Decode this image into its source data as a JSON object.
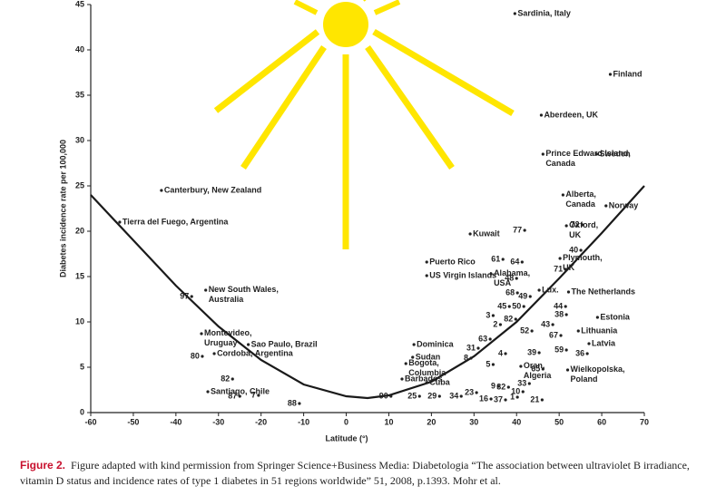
{
  "chart_data": {
    "type": "scatter",
    "x_label": "Latitude (°)",
    "y_label": "Diabetes incidence rate per 100,000",
    "xlim": [
      -60,
      70
    ],
    "xticks": [
      -60,
      -50,
      -40,
      -30,
      -20,
      -10,
      0,
      10,
      20,
      30,
      40,
      50,
      60,
      70
    ],
    "ylim": [
      0,
      45
    ],
    "yticks": [
      0,
      5,
      10,
      15,
      20,
      25,
      30,
      35,
      40,
      45
    ],
    "color": "#222222",
    "curve_color": "#1a1a1a",
    "labels": [
      "Sardinia, Italy",
      "Finland",
      "Aberdeen, UK",
      "Prince Edward Island,\nCanada",
      "Sweden",
      "Canterbury, New Zealand",
      "Tierra del Fuego, Argentina",
      "Alberta,\nCanada",
      "Norway",
      "Kuwait",
      "Oxford,\nUK",
      "Puerto Rico",
      "US Virgin Islands",
      "Plymouth,\nUK",
      "Alabama,\nUSA",
      "New South Wales,\nAustralia",
      "Lux.",
      "The Netherlands",
      "Estonia",
      "Montevideo,\nUruguay",
      "Lithuania",
      "Sao Paulo, Brazil",
      "Dominica",
      "Latvia",
      "Cordoba, Argentina",
      "Bogota,\nColumbia",
      "Sudan",
      "Wielkopolska,\nPoland",
      "Oran,\nAlgeria",
      "Barbados",
      "Cuba",
      "Santiago, Chile",
      "97",
      "80",
      "82",
      "87",
      "7",
      "88",
      "90",
      "25",
      "29",
      "34",
      "23",
      "16",
      "37",
      "1",
      "21",
      "10",
      "32",
      "33",
      "9",
      "3",
      "2",
      "45",
      "50",
      "68",
      "49",
      "48",
      "61",
      "64",
      "77",
      "72",
      "40",
      "71",
      "44",
      "38",
      "43",
      "52",
      "82",
      "67",
      "63",
      "31",
      "8",
      "5",
      "4",
      "39",
      "59",
      "36",
      "65"
    ],
    "x": [
      39.6,
      62,
      45.8,
      46.2,
      58.8,
      -43.4,
      -53.2,
      50.9,
      61,
      29.1,
      51.7,
      18.9,
      18.9,
      50.2,
      34,
      -33,
      45.3,
      52.2,
      59,
      -34,
      54.5,
      -23,
      15.9,
      57,
      -31,
      14,
      15.6,
      52,
      41,
      13.1,
      18.9,
      -32.5,
      -36.3,
      -33.8,
      -26.7,
      -25,
      -20.6,
      -11,
      10.5,
      17.2,
      21.9,
      27,
      30.6,
      34,
      37.4,
      40.2,
      46,
      41.5,
      38.1,
      43,
      35.7,
      34.5,
      36.2,
      38.3,
      41.7,
      40.2,
      43.2,
      40,
      36.8,
      41.3,
      41.9,
      55.4,
      55.1,
      51.5,
      51.5,
      51.7,
      48.5,
      43.6,
      39.8,
      50.4,
      33.8,
      31,
      29.3,
      34.5,
      37.4,
      45.3,
      51.7,
      56.6,
      46.2
    ],
    "values": [
      44,
      37.3,
      32.8,
      28.5,
      28.5,
      24.5,
      21,
      24,
      22.8,
      19.7,
      20.6,
      16.6,
      15.1,
      17,
      15.3,
      13.5,
      13.5,
      13.3,
      10.5,
      8.7,
      9,
      7.5,
      7.5,
      7.6,
      6.5,
      5.4,
      6.1,
      4.7,
      5.1,
      3.7,
      3.3,
      2.3,
      12.8,
      6.2,
      3.7,
      1.8,
      1.9,
      1,
      1.8,
      1.8,
      1.8,
      1.8,
      2.2,
      1.5,
      1.4,
      1.7,
      1.4,
      2.3,
      2.8,
      3.2,
      2.9,
      10.7,
      9.7,
      11.7,
      11.7,
      13.2,
      12.8,
      14.8,
      16.9,
      16.6,
      20.1,
      20.7,
      17.9,
      15.8,
      11.7,
      10.8,
      9.7,
      9,
      10.3,
      8.5,
      8.1,
      7.1,
      6,
      5.3,
      6.5,
      6.6,
      6.9,
      6.5,
      4.8
    ],
    "curve": {
      "x": [
        -60,
        -50,
        -40,
        -30,
        -20,
        -10,
        0,
        5,
        10,
        20,
        30,
        40,
        50,
        60,
        70
      ],
      "y": [
        24,
        19,
        14,
        9.5,
        5.8,
        3.1,
        1.8,
        1.6,
        1.9,
        3.4,
        6.2,
        10,
        14.8,
        19.8,
        25
      ]
    },
    "caption_label": "Figure 2.",
    "caption": "Figure adapted with kind permission from Springer Science+Business Media: Diabetologia “The association between ultraviolet B irradiance, vitamin D status and incidence rates of type 1 diabetes in 51 regions worldwide” 51, 2008, p.1393. Mohr et al."
  }
}
